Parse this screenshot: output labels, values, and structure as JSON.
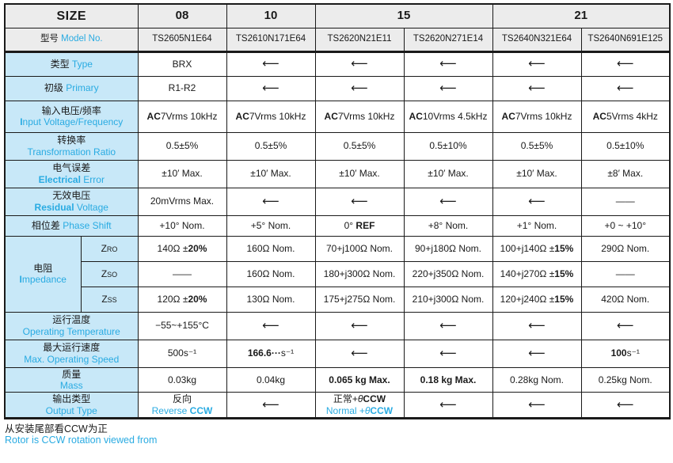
{
  "colors": {
    "accent": "#29abe2",
    "label_bg": "#c8e8f8",
    "header_bg": "#ececec",
    "border": "#1a1a1a"
  },
  "size_header": {
    "label": "SIZE",
    "columns": [
      {
        "label": "08",
        "span": 1
      },
      {
        "label": "10",
        "span": 1
      },
      {
        "label": "15",
        "span": 2
      },
      {
        "label": "21",
        "span": 2
      }
    ]
  },
  "labels": {
    "model": [
      {
        "t": "型号 "
      },
      {
        "t": "Model No.",
        "c": 1
      }
    ],
    "type": [
      {
        "t": "类型 "
      },
      {
        "t": "Type",
        "c": 1
      }
    ],
    "primary": [
      {
        "t": "初级 "
      },
      {
        "t": "Primary",
        "c": 1
      }
    ],
    "input": {
      "cn": "输入电压/频率",
      "en": [
        {
          "t": "I",
          "b": 1
        },
        {
          "t": "nput Voltage/Frequency"
        }
      ]
    },
    "ratio": {
      "cn": "转换率",
      "en": [
        {
          "t": "Transformation Ratio"
        }
      ]
    },
    "error": {
      "cn": "电气误差",
      "en": [
        {
          "t": "Electrical",
          "b": 1
        },
        {
          "t": " Error"
        }
      ]
    },
    "residual": {
      "cn": "无效电压",
      "en": [
        {
          "t": "Residual",
          "b": 1
        },
        {
          "t": " Voltage"
        }
      ]
    },
    "phase": [
      {
        "t": "相位差 "
      },
      {
        "t": "Phase Shift",
        "c": 1
      }
    ],
    "impedance": {
      "cn": "电阻",
      "en": [
        {
          "t": "I",
          "b": 1
        },
        {
          "t": "mpedance"
        }
      ]
    },
    "zro": [
      {
        "t": "Z"
      },
      {
        "t": "RO",
        "sm": 1
      }
    ],
    "zso": [
      {
        "t": "Z"
      },
      {
        "t": "SO",
        "sm": 1
      }
    ],
    "zss": [
      {
        "t": "Z"
      },
      {
        "t": "SS",
        "sm": 1
      }
    ],
    "temp": {
      "cn": "运行温度",
      "en": [
        {
          "t": "Operating Temperature"
        }
      ]
    },
    "speed": {
      "cn": "最大运行速度",
      "en": [
        {
          "t": "Max. Operating Speed"
        }
      ]
    },
    "mass": {
      "cn": "质量",
      "en": [
        {
          "t": "Mass"
        }
      ]
    },
    "output": {
      "cn": "输出类型",
      "en": [
        {
          "t": "Output Type"
        }
      ]
    }
  },
  "rows": {
    "model": {
      "cells": [
        "TS2605N1E64",
        "TS2610N171E64",
        "TS2620N21E11",
        "TS2620N271E14",
        "TS2640N321E64",
        "TS2640N691E125"
      ]
    },
    "type": {
      "cells": [
        "BRX",
        "⟵",
        "⟵",
        "⟵",
        "⟵",
        "⟵"
      ]
    },
    "primary": {
      "cells": [
        "R1-R2",
        "⟵",
        "⟵",
        "⟵",
        "⟵",
        "⟵"
      ]
    },
    "input": {
      "cells": [
        [
          {
            "t": "AC",
            "b": 1
          },
          {
            "t": "7Vrms 10kHz"
          }
        ],
        [
          {
            "t": "AC",
            "b": 1
          },
          {
            "t": "7Vrms 10kHz"
          }
        ],
        [
          {
            "t": "AC",
            "b": 1
          },
          {
            "t": "7Vrms 10kHz"
          }
        ],
        [
          {
            "t": "AC",
            "b": 1
          },
          {
            "t": "10Vrms 4.5kHz"
          }
        ],
        [
          {
            "t": "AC",
            "b": 1
          },
          {
            "t": "7Vrms 10kHz"
          }
        ],
        [
          {
            "t": "AC",
            "b": 1
          },
          {
            "t": "5Vrms 4kHz"
          }
        ]
      ]
    },
    "ratio": {
      "cells": [
        "0.5±5%",
        "0.5±5%",
        "0.5±5%",
        "0.5±10%",
        "0.5±5%",
        "0.5±10%"
      ]
    },
    "error": {
      "cells": [
        "±10′ Max.",
        "±10′ Max.",
        "±10′ Max.",
        "±10′ Max.",
        "±10′ Max.",
        "±8′ Max."
      ]
    },
    "residual": {
      "cells": [
        "20mVrms Max.",
        "⟵",
        "⟵",
        "⟵",
        "⟵",
        "——"
      ]
    },
    "phase": {
      "cells": [
        "+10° Nom.",
        "+5° Nom.",
        [
          {
            "t": "0° "
          },
          {
            "t": "REF",
            "b": 1
          }
        ],
        "+8° Nom.",
        "+1° Nom.",
        "+0 ~ +10°"
      ]
    },
    "zro": {
      "cells": [
        [
          {
            "t": "140Ω ±"
          },
          {
            "t": "20%",
            "b": 1
          }
        ],
        "160Ω Nom.",
        "70+j100Ω Nom.",
        "90+j180Ω Nom.",
        [
          {
            "t": "100+j140Ω ±"
          },
          {
            "t": "15%",
            "b": 1
          }
        ],
        "290Ω Nom."
      ]
    },
    "zso": {
      "cells": [
        "——",
        "160Ω Nom.",
        "180+j300Ω Nom.",
        "220+j350Ω Nom.",
        [
          {
            "t": "140+j270Ω ±"
          },
          {
            "t": "15%",
            "b": 1
          }
        ],
        "——"
      ]
    },
    "zss": {
      "cells": [
        [
          {
            "t": "120Ω ±"
          },
          {
            "t": "20%",
            "b": 1
          }
        ],
        "130Ω Nom.",
        "175+j275Ω Nom.",
        "210+j300Ω Nom.",
        [
          {
            "t": "120+j240Ω ±"
          },
          {
            "t": "15%",
            "b": 1
          }
        ],
        "420Ω Nom."
      ]
    },
    "temp": {
      "cells": [
        "−55~+155°C",
        "⟵",
        "⟵",
        "⟵",
        "⟵",
        "⟵"
      ]
    },
    "speed": {
      "cells": [
        "500s⁻¹",
        [
          {
            "t": "166.6···",
            "b": 1
          },
          {
            "t": "s⁻¹"
          }
        ],
        "⟵",
        "⟵",
        "⟵",
        [
          {
            "t": "100",
            "b": 1
          },
          {
            "t": "s⁻¹"
          }
        ]
      ]
    },
    "mass": {
      "cells": [
        "0.03kg",
        "0.04kg",
        [
          {
            "t": "0.065 kg Max.",
            "b": 1
          }
        ],
        [
          {
            "t": "0.18 kg Max.",
            "b": 1
          }
        ],
        "0.28kg Nom.",
        "0.25kg Nom."
      ]
    },
    "output": {
      "cells": [
        [
          {
            "t": "反向"
          },
          {
            "br": 1
          },
          {
            "t": "Reverse ",
            "c": 1
          },
          {
            "t": "CCW",
            "c": 1,
            "b": 1
          }
        ],
        "⟵",
        [
          {
            "t": "正常+"
          },
          {
            "t": "θ",
            "i": 1
          },
          {
            "t": "CCW",
            "b": 1
          },
          {
            "br": 1
          },
          {
            "t": "Normal +",
            "c": 1
          },
          {
            "t": "θ",
            "c": 1,
            "i": 1
          },
          {
            "t": "CCW",
            "c": 1,
            "b": 1
          }
        ],
        "⟵",
        "⟵",
        "⟵"
      ]
    }
  },
  "footer": {
    "line_cn": "从安装尾部看CCW为正",
    "line_en": "Rotor is CCW rotation viewed from"
  }
}
